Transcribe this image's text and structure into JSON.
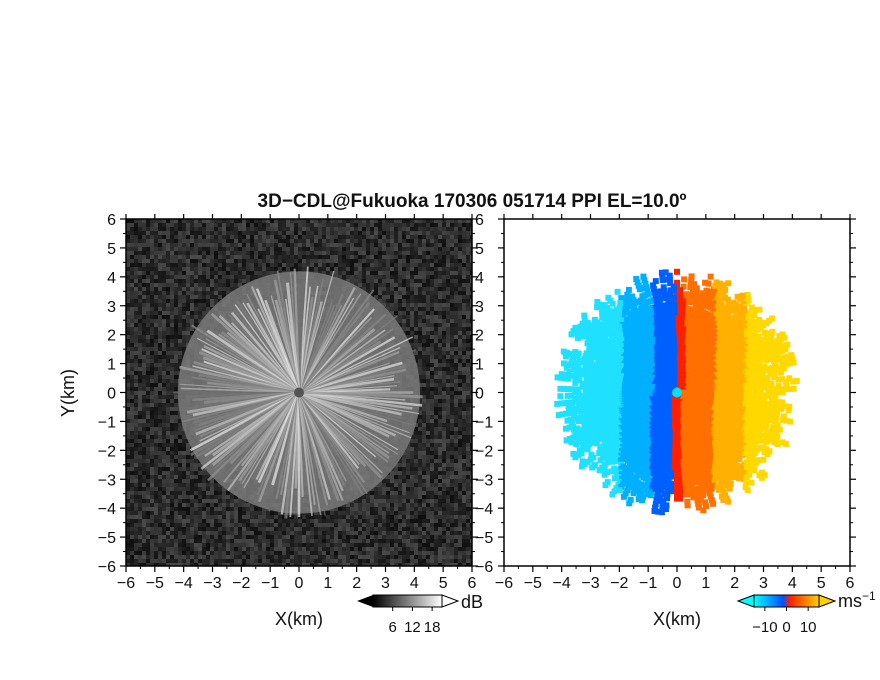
{
  "chart_data": [
    {
      "type": "heatmap",
      "panel": "left",
      "title": "3D−CDL@Fukuoka 170306 051714 PPI EL=10.0º",
      "xlabel": "X(km)",
      "ylabel": "Y(km)",
      "xlim": [
        -6,
        6
      ],
      "ylim": [
        -6,
        6
      ],
      "x_ticks": [
        "−6",
        "−5",
        "−4",
        "−3",
        "−2",
        "−1",
        "0",
        "1",
        "2",
        "3",
        "4",
        "5",
        "6"
      ],
      "y_ticks": [
        "6",
        "5",
        "4",
        "3",
        "2",
        "1",
        "0",
        "−1",
        "−2",
        "−3",
        "−4",
        "−5",
        "−6"
      ],
      "quantity": "signal intensity",
      "data_radius_km": 4.2,
      "colorbar": {
        "unit": "dB",
        "ticks": [
          "6",
          "12",
          "18"
        ],
        "range": [
          0,
          21
        ],
        "colors": [
          "#000000",
          "#ffffff"
        ]
      }
    },
    {
      "type": "heatmap",
      "panel": "right",
      "xlabel": "X(km)",
      "xlim": [
        -6,
        6
      ],
      "ylim": [
        -6,
        6
      ],
      "x_ticks": [
        "−6",
        "−5",
        "−4",
        "−3",
        "−2",
        "−1",
        "0",
        "1",
        "2",
        "3",
        "4",
        "5",
        "6"
      ],
      "y_ticks": [
        "6",
        "5",
        "4",
        "3",
        "2",
        "1",
        "0",
        "−1",
        "−2",
        "−3",
        "−4",
        "−5",
        "−6"
      ],
      "quantity": "Doppler velocity",
      "data_radius_km": 4.3,
      "colorbar": {
        "unit": "ms",
        "unit_exp": "−1",
        "ticks": [
          "−10",
          "0",
          "10"
        ],
        "range": [
          -15,
          15
        ],
        "colors": [
          "#00ffff",
          "#0050ff",
          "#ff2000",
          "#ffd000"
        ]
      }
    }
  ]
}
